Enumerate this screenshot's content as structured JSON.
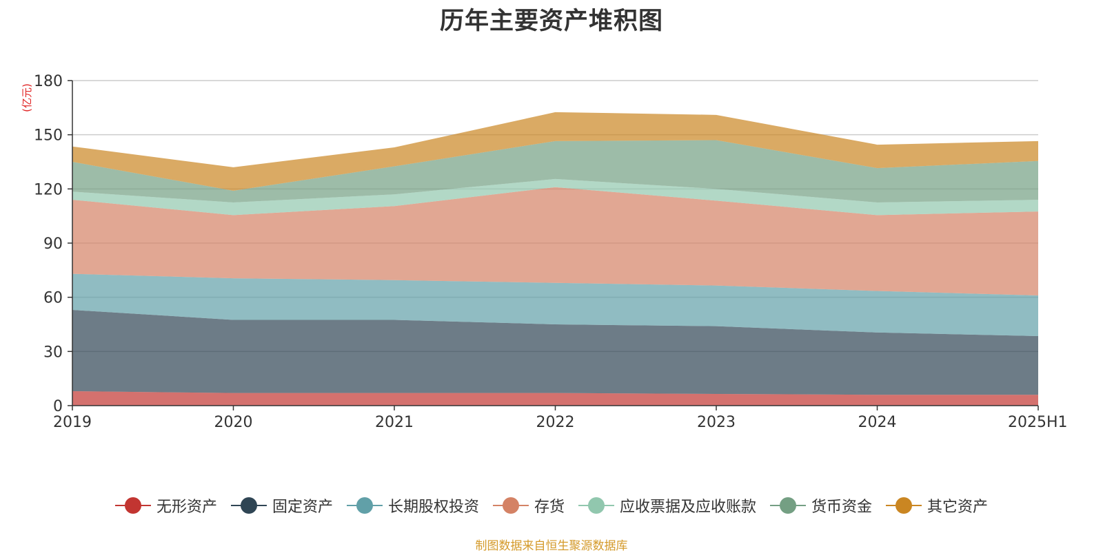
{
  "chart_data": {
    "type": "area",
    "stacked": true,
    "title": "历年主要资产堆积图",
    "ylabel": "(亿元)",
    "xlabel": "",
    "categories": [
      "2019",
      "2020",
      "2021",
      "2022",
      "2023",
      "2024",
      "2025H1"
    ],
    "yticks": [
      "0",
      "30",
      "60",
      "90",
      "120",
      "150",
      "180"
    ],
    "ylim": [
      0,
      180
    ],
    "grid": true,
    "legend_position": "bottom",
    "series": [
      {
        "name": "无形资产",
        "color": "#c23531",
        "values": [
          8,
          7,
          7,
          7,
          6.5,
          6,
          6
        ]
      },
      {
        "name": "固定资产",
        "color": "#2f4554",
        "values": [
          45,
          40.5,
          40.5,
          38,
          37.5,
          34.5,
          32.5
        ]
      },
      {
        "name": "长期股权投资",
        "color": "#61a0a8",
        "values": [
          20,
          23,
          22,
          23,
          22.5,
          23,
          22.5
        ]
      },
      {
        "name": "存货",
        "color": "#d48265",
        "values": [
          41,
          35,
          41,
          53,
          47,
          42,
          46.5
        ]
      },
      {
        "name": "应收票据及应收账款",
        "color": "#91c7ae",
        "values": [
          4.5,
          7,
          6.5,
          4.5,
          6.5,
          7,
          6.5
        ]
      },
      {
        "name": "货币资金",
        "color": "#749f83",
        "values": [
          16.5,
          6.5,
          15.5,
          21,
          27,
          19,
          21.5
        ]
      },
      {
        "name": "其它资产",
        "color": "#ca8622",
        "values": [
          8.5,
          13,
          10.5,
          16,
          14,
          13,
          11
        ]
      }
    ]
  },
  "source_note": "制图数据来自恒生聚源数据库"
}
